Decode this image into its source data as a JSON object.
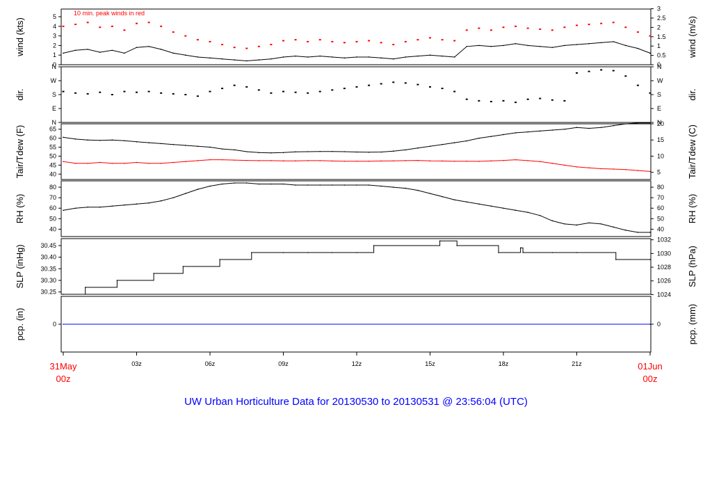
{
  "colors": {
    "frame": "#000000",
    "main": "#000000",
    "accent": "#ff0000",
    "precip": "#0000ff",
    "title": "#0000ff"
  },
  "title": "UW Urban Horticulture Data for 20130530  to  20130531 @ 23:56:04  (UTC)",
  "x_axis": {
    "start_day": "31May",
    "start_hour": "00z",
    "end_day": "01Jun",
    "end_hour": "00z",
    "ticks": [
      "03z",
      "06z",
      "09z",
      "12z",
      "15z",
      "18z",
      "21z"
    ],
    "tick_hours": [
      3,
      6,
      9,
      12,
      15,
      18,
      21
    ],
    "range_hours": [
      0,
      24
    ]
  },
  "chart_data": [
    {
      "type": "line",
      "panel": "wind",
      "ylabel_left": "wind (kts)",
      "ylabel_right": "wind (m/s)",
      "annotation": "10 min. peak winds in red",
      "ylim": [
        0,
        5.8
      ],
      "yticks_left": [
        "0",
        "1",
        "2",
        "3",
        "4",
        "5"
      ],
      "yticks_right": [
        "0",
        "0.5",
        "1",
        "1.5",
        "2",
        "2.5",
        "3"
      ],
      "yticks_right_values": [
        0,
        0.5,
        1,
        1.5,
        2,
        2.5,
        3
      ],
      "series": [
        {
          "name": "wind",
          "style": "line",
          "x": [
            0,
            0.5,
            1,
            1.5,
            2,
            2.5,
            3,
            3.5,
            4,
            4.5,
            5,
            5.5,
            6,
            6.5,
            7,
            7.5,
            8,
            8.5,
            9,
            9.5,
            10,
            10.5,
            11,
            11.5,
            12,
            12.5,
            13,
            13.5,
            14,
            14.5,
            15,
            15.5,
            16,
            16.5,
            17,
            17.5,
            18,
            18.5,
            19,
            19.5,
            20,
            20.5,
            21,
            21.5,
            22,
            22.5,
            23,
            23.5,
            24
          ],
          "y": [
            1.2,
            1.5,
            1.6,
            1.3,
            1.5,
            1.2,
            1.8,
            1.9,
            1.6,
            1.2,
            1.0,
            0.8,
            0.7,
            0.6,
            0.5,
            0.4,
            0.5,
            0.6,
            0.8,
            0.9,
            0.8,
            0.9,
            0.8,
            0.7,
            0.8,
            0.8,
            0.7,
            0.6,
            0.8,
            0.9,
            1.0,
            0.9,
            0.8,
            1.9,
            2.0,
            1.9,
            2.0,
            2.2,
            2.0,
            1.9,
            1.8,
            2.0,
            2.1,
            2.2,
            2.3,
            2.4,
            2.0,
            1.7,
            1.2
          ]
        },
        {
          "name": "10 min. peak winds",
          "style": "points",
          "x": [
            0,
            0.5,
            1,
            1.5,
            2,
            2.5,
            3,
            3.5,
            4,
            4.5,
            5,
            5.5,
            6,
            6.5,
            7,
            7.5,
            8,
            8.5,
            9,
            9.5,
            10,
            10.5,
            11,
            11.5,
            12,
            12.5,
            13,
            13.5,
            14,
            14.5,
            15,
            15.5,
            16,
            16.5,
            17,
            17.5,
            18,
            18.5,
            19,
            19.5,
            20,
            20.5,
            21,
            21.5,
            22,
            22.5,
            23,
            23.5,
            24
          ],
          "y": [
            4.0,
            4.2,
            4.4,
            3.9,
            4.0,
            3.6,
            4.3,
            4.4,
            4.0,
            3.4,
            3.0,
            2.6,
            2.4,
            2.1,
            1.8,
            1.7,
            1.9,
            2.1,
            2.5,
            2.6,
            2.4,
            2.6,
            2.4,
            2.3,
            2.4,
            2.5,
            2.3,
            2.1,
            2.4,
            2.6,
            2.8,
            2.6,
            2.5,
            3.6,
            3.8,
            3.6,
            3.9,
            4.0,
            3.8,
            3.7,
            3.6,
            3.9,
            4.1,
            4.2,
            4.3,
            4.4,
            3.9,
            3.4,
            3.0
          ]
        }
      ]
    },
    {
      "type": "scatter",
      "panel": "direction",
      "ylabel_left": "dir.",
      "ylabel_right": "dir.",
      "ylim": [
        0,
        360
      ],
      "yticks_left": [
        "N",
        "E",
        "S",
        "W",
        "N"
      ],
      "yticks_right": [
        "N",
        "E",
        "S",
        "W",
        "N"
      ],
      "yticks_values": [
        0,
        90,
        180,
        270,
        360
      ],
      "series": [
        {
          "name": "direction",
          "x": [
            0,
            0.5,
            1,
            1.5,
            2,
            2.5,
            3,
            3.5,
            4,
            4.5,
            5,
            5.5,
            6,
            6.5,
            7,
            7.5,
            8,
            8.5,
            9,
            9.5,
            10,
            10.5,
            11,
            11.5,
            12,
            12.5,
            13,
            13.5,
            14,
            14.5,
            15,
            15.5,
            16,
            16.5,
            17,
            17.5,
            18,
            18.5,
            19,
            19.5,
            20,
            20.5,
            21,
            21.5,
            22,
            22.5,
            23,
            23.5,
            24
          ],
          "y": [
            200,
            190,
            185,
            195,
            180,
            200,
            195,
            200,
            190,
            185,
            180,
            170,
            200,
            220,
            240,
            230,
            210,
            190,
            200,
            195,
            190,
            200,
            210,
            220,
            230,
            240,
            250,
            260,
            255,
            245,
            230,
            220,
            200,
            150,
            140,
            135,
            140,
            130,
            150,
            155,
            145,
            140,
            320,
            330,
            340,
            335,
            300,
            240,
            190
          ]
        }
      ]
    },
    {
      "type": "line",
      "panel": "temperature",
      "ylabel_left": "Tair/Tdew (F)",
      "ylabel_right": "Tair/Tdew (C)",
      "ylim": [
        37,
        68
      ],
      "yticks_left": [
        "40",
        "45",
        "50",
        "55",
        "60",
        "65"
      ],
      "yticks_right": [
        "5",
        "10",
        "15",
        "20"
      ],
      "yticks_right_values": [
        5,
        10,
        15,
        20
      ],
      "series": [
        {
          "name": "Tair",
          "x": [
            0,
            0.5,
            1,
            1.5,
            2,
            2.5,
            3,
            3.5,
            4,
            4.5,
            5,
            5.5,
            6,
            6.5,
            7,
            7.5,
            8,
            8.5,
            9,
            9.5,
            10,
            10.5,
            11,
            11.5,
            12,
            12.5,
            13,
            13.5,
            14,
            14.5,
            15,
            15.5,
            16,
            16.5,
            17,
            17.5,
            18,
            18.5,
            19,
            19.5,
            20,
            20.5,
            21,
            21.5,
            22,
            22.5,
            23,
            23.5,
            24
          ],
          "y": [
            60.5,
            59.5,
            59,
            58.8,
            59,
            58.6,
            58,
            57.5,
            57,
            56.5,
            56,
            55.5,
            55,
            54,
            53.5,
            52.5,
            52,
            51.8,
            52,
            52.4,
            52.5,
            52.6,
            52.6,
            52.5,
            52.3,
            52.2,
            52.3,
            52.8,
            53.5,
            54.5,
            55.5,
            56.5,
            57.5,
            58.5,
            60,
            61,
            62,
            63,
            63.5,
            64,
            64.5,
            65,
            66,
            65.5,
            66,
            67,
            68,
            68.5,
            68.5
          ]
        },
        {
          "name": "Tdew",
          "x": [
            0,
            0.5,
            1,
            1.5,
            2,
            2.5,
            3,
            3.5,
            4,
            4.5,
            5,
            5.5,
            6,
            6.5,
            7,
            7.5,
            8,
            8.5,
            9,
            9.5,
            10,
            10.5,
            11,
            11.5,
            12,
            12.5,
            13,
            13.5,
            14,
            14.5,
            15,
            15.5,
            16,
            16.5,
            17,
            17.5,
            18,
            18.5,
            19,
            19.5,
            20,
            20.5,
            21,
            21.5,
            22,
            22.5,
            23,
            23.5,
            24
          ],
          "y": [
            47,
            46,
            46,
            46.5,
            46,
            46,
            46.5,
            46,
            46,
            46.5,
            47,
            47.5,
            48,
            48,
            47.8,
            47.6,
            47.5,
            47.5,
            47.4,
            47.4,
            47.5,
            47.5,
            47.3,
            47.2,
            47.2,
            47.2,
            47.3,
            47.4,
            47.5,
            47.6,
            47.4,
            47.3,
            47.2,
            47.2,
            47.1,
            47.4,
            47.6,
            48,
            47.5,
            47,
            46,
            45,
            44,
            43.5,
            43,
            42.8,
            42.5,
            42,
            41.5
          ]
        }
      ]
    },
    {
      "type": "line",
      "panel": "humidity",
      "ylabel_left": "RH (%)",
      "ylabel_right": "RH (%)",
      "ylim": [
        33,
        86
      ],
      "yticks_left": [
        "40",
        "50",
        "60",
        "70",
        "80"
      ],
      "yticks_right": [
        "40",
        "50",
        "60",
        "70",
        "80"
      ],
      "yticks_values": [
        40,
        50,
        60,
        70,
        80
      ],
      "series": [
        {
          "name": "RH",
          "x": [
            0,
            0.5,
            1,
            1.5,
            2,
            2.5,
            3,
            3.5,
            4,
            4.5,
            5,
            5.5,
            6,
            6.5,
            7,
            7.5,
            8,
            8.5,
            9,
            9.5,
            10,
            10.5,
            11,
            11.5,
            12,
            12.5,
            13,
            13.5,
            14,
            14.5,
            15,
            15.5,
            16,
            16.5,
            17,
            17.5,
            18,
            18.5,
            19,
            19.5,
            20,
            20.5,
            21,
            21.5,
            22,
            22.5,
            23,
            23.5,
            24
          ],
          "y": [
            58,
            60,
            61,
            61,
            62,
            63,
            64,
            65,
            67,
            70,
            74,
            78,
            81,
            83,
            84,
            84,
            83,
            83,
            83,
            82,
            82,
            82,
            82,
            82,
            82,
            82,
            81,
            80,
            79,
            77,
            74,
            71,
            68,
            66,
            64,
            62,
            60,
            58,
            56,
            53,
            48,
            45,
            44,
            46,
            45,
            42,
            39,
            37,
            37
          ]
        }
      ]
    },
    {
      "type": "line",
      "panel": "pressure",
      "ylabel_left": "SLP (inHg)",
      "ylabel_right": "SLP (hPa)",
      "ylim": [
        30.24,
        30.48
      ],
      "yticks_left": [
        "30.25",
        "30.30",
        "30.35",
        "30.40",
        "30.45"
      ],
      "yticks_left_values": [
        30.25,
        30.3,
        30.35,
        30.4,
        30.45
      ],
      "yticks_right": [
        "1024",
        "1026",
        "1028",
        "1030",
        "1032"
      ],
      "yticks_right_values": [
        1024,
        1026,
        1028,
        1030,
        1032
      ],
      "series": [
        {
          "name": "SLP",
          "style": "step",
          "x": [
            0,
            0.9,
            2.2,
            3.7,
            4.9,
            6.4,
            7.7,
            9,
            10,
            11,
            12,
            12.7,
            15.4,
            16.1,
            17.8,
            18.7,
            18.8,
            20,
            21,
            22.6,
            24
          ],
          "y": [
            30.24,
            30.27,
            30.3,
            30.33,
            30.36,
            30.39,
            30.42,
            30.42,
            30.42,
            30.42,
            30.42,
            30.45,
            30.47,
            30.45,
            30.42,
            30.44,
            30.42,
            30.42,
            30.42,
            30.39,
            30.39
          ]
        }
      ]
    },
    {
      "type": "line",
      "panel": "precipitation",
      "ylabel_left": "pcp. (in)",
      "ylabel_right": "pcp. (mm)",
      "ylim": [
        -1,
        1
      ],
      "yticks_left": [
        "0"
      ],
      "yticks_right": [
        "0"
      ],
      "series": [
        {
          "name": "pcp",
          "x": [
            0,
            24
          ],
          "y": [
            0,
            0
          ]
        }
      ]
    }
  ]
}
